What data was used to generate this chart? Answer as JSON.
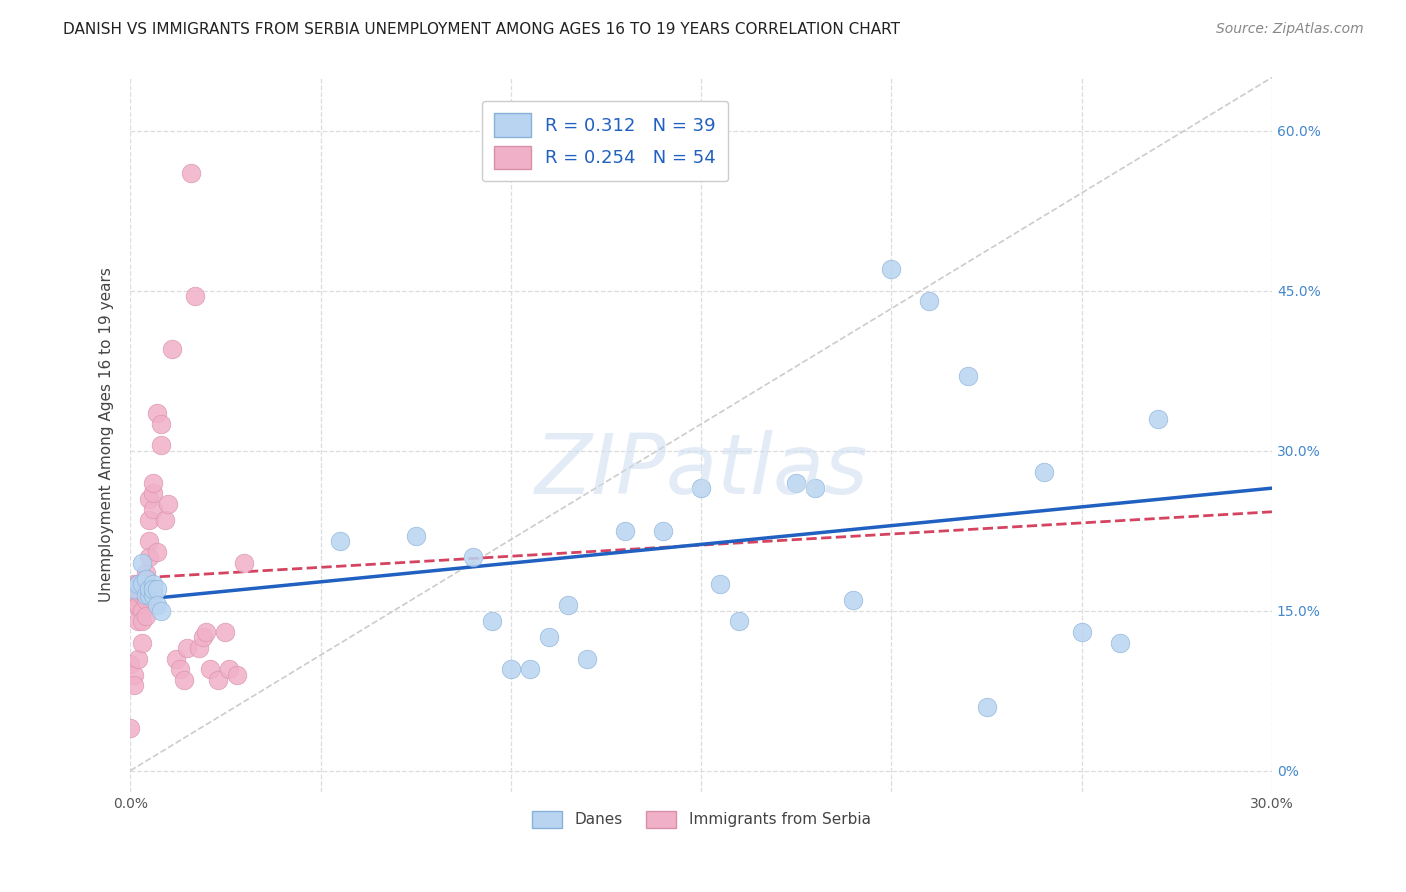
{
  "title": "DANISH VS IMMIGRANTS FROM SERBIA UNEMPLOYMENT AMONG AGES 16 TO 19 YEARS CORRELATION CHART",
  "source": "Source: ZipAtlas.com",
  "ylabel": "Unemployment Among Ages 16 to 19 years",
  "xlim": [
    0.0,
    0.3
  ],
  "ylim": [
    -0.02,
    0.65
  ],
  "xticks": [
    0.0,
    0.05,
    0.1,
    0.15,
    0.2,
    0.25,
    0.3
  ],
  "yticks": [
    0.0,
    0.15,
    0.3,
    0.45,
    0.6
  ],
  "ytick_labels_right": [
    "0%",
    "15.0%",
    "30.0%",
    "45.0%",
    "60.0%"
  ],
  "danes_R": 0.312,
  "danes_N": 39,
  "serbia_R": 0.254,
  "serbia_N": 54,
  "danes_color": "#b8d4f0",
  "serbia_color": "#f0b0c8",
  "trend_danes_color": "#2060c0",
  "trend_serbia_color": "#d03050",
  "danes_x": [
    0.001,
    0.002,
    0.003,
    0.003,
    0.004,
    0.004,
    0.005,
    0.005,
    0.006,
    0.006,
    0.006,
    0.007,
    0.007,
    0.008,
    0.055,
    0.075,
    0.09,
    0.095,
    0.1,
    0.105,
    0.11,
    0.115,
    0.12,
    0.13,
    0.14,
    0.15,
    0.155,
    0.16,
    0.175,
    0.18,
    0.19,
    0.2,
    0.21,
    0.22,
    0.225,
    0.24,
    0.25,
    0.26,
    0.27
  ],
  "danes_y": [
    0.17,
    0.175,
    0.175,
    0.195,
    0.165,
    0.18,
    0.165,
    0.17,
    0.165,
    0.175,
    0.17,
    0.17,
    0.155,
    0.15,
    0.215,
    0.22,
    0.2,
    0.14,
    0.095,
    0.095,
    0.125,
    0.155,
    0.105,
    0.225,
    0.225,
    0.265,
    0.175,
    0.14,
    0.27,
    0.265,
    0.16,
    0.47,
    0.44,
    0.37,
    0.06,
    0.28,
    0.13,
    0.12,
    0.33
  ],
  "serbia_x": [
    0.0,
    0.0,
    0.0,
    0.0,
    0.001,
    0.001,
    0.001,
    0.001,
    0.001,
    0.002,
    0.002,
    0.002,
    0.002,
    0.002,
    0.002,
    0.003,
    0.003,
    0.003,
    0.003,
    0.003,
    0.003,
    0.004,
    0.004,
    0.004,
    0.004,
    0.005,
    0.005,
    0.005,
    0.005,
    0.006,
    0.006,
    0.006,
    0.007,
    0.007,
    0.008,
    0.008,
    0.009,
    0.01,
    0.011,
    0.012,
    0.013,
    0.014,
    0.015,
    0.016,
    0.017,
    0.018,
    0.019,
    0.02,
    0.021,
    0.023,
    0.025,
    0.026,
    0.028,
    0.03
  ],
  "serbia_y": [
    0.17,
    0.165,
    0.1,
    0.04,
    0.175,
    0.165,
    0.155,
    0.09,
    0.08,
    0.175,
    0.17,
    0.155,
    0.155,
    0.14,
    0.105,
    0.175,
    0.17,
    0.165,
    0.15,
    0.14,
    0.12,
    0.185,
    0.18,
    0.16,
    0.145,
    0.215,
    0.235,
    0.255,
    0.2,
    0.245,
    0.26,
    0.27,
    0.205,
    0.335,
    0.305,
    0.325,
    0.235,
    0.25,
    0.395,
    0.105,
    0.095,
    0.085,
    0.115,
    0.56,
    0.445,
    0.115,
    0.125,
    0.13,
    0.095,
    0.085,
    0.13,
    0.095,
    0.09,
    0.195
  ],
  "watermark": "ZIPatlas",
  "background_color": "#ffffff",
  "grid_color": "#dddddd"
}
